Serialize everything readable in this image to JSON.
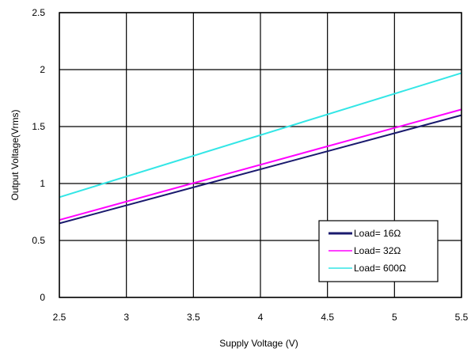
{
  "chart_data": {
    "type": "line",
    "xlabel": "Supply Voltage (V)",
    "ylabel": "Output Voltage(Vrms)",
    "xlim": [
      2.5,
      5.5
    ],
    "ylim": [
      0,
      2.5
    ],
    "xticks": [
      "2.5",
      "3",
      "3.5",
      "4",
      "4.5",
      "5",
      "5.5"
    ],
    "yticks": [
      "0",
      "0.5",
      "1",
      "1.5",
      "2",
      "2.5"
    ],
    "grid": true,
    "legend_position": "bottom-right",
    "series": [
      {
        "name": "Load= 16Ω",
        "color": "#1a1a6e",
        "x": [
          2.5,
          5.5
        ],
        "y": [
          0.65,
          1.6
        ]
      },
      {
        "name": "Load= 32Ω",
        "color": "#ff00ff",
        "x": [
          2.5,
          5.5
        ],
        "y": [
          0.68,
          1.65
        ]
      },
      {
        "name": "Load= 600Ω",
        "color": "#33e6e6",
        "x": [
          2.5,
          5.5
        ],
        "y": [
          0.88,
          1.97
        ]
      }
    ]
  }
}
